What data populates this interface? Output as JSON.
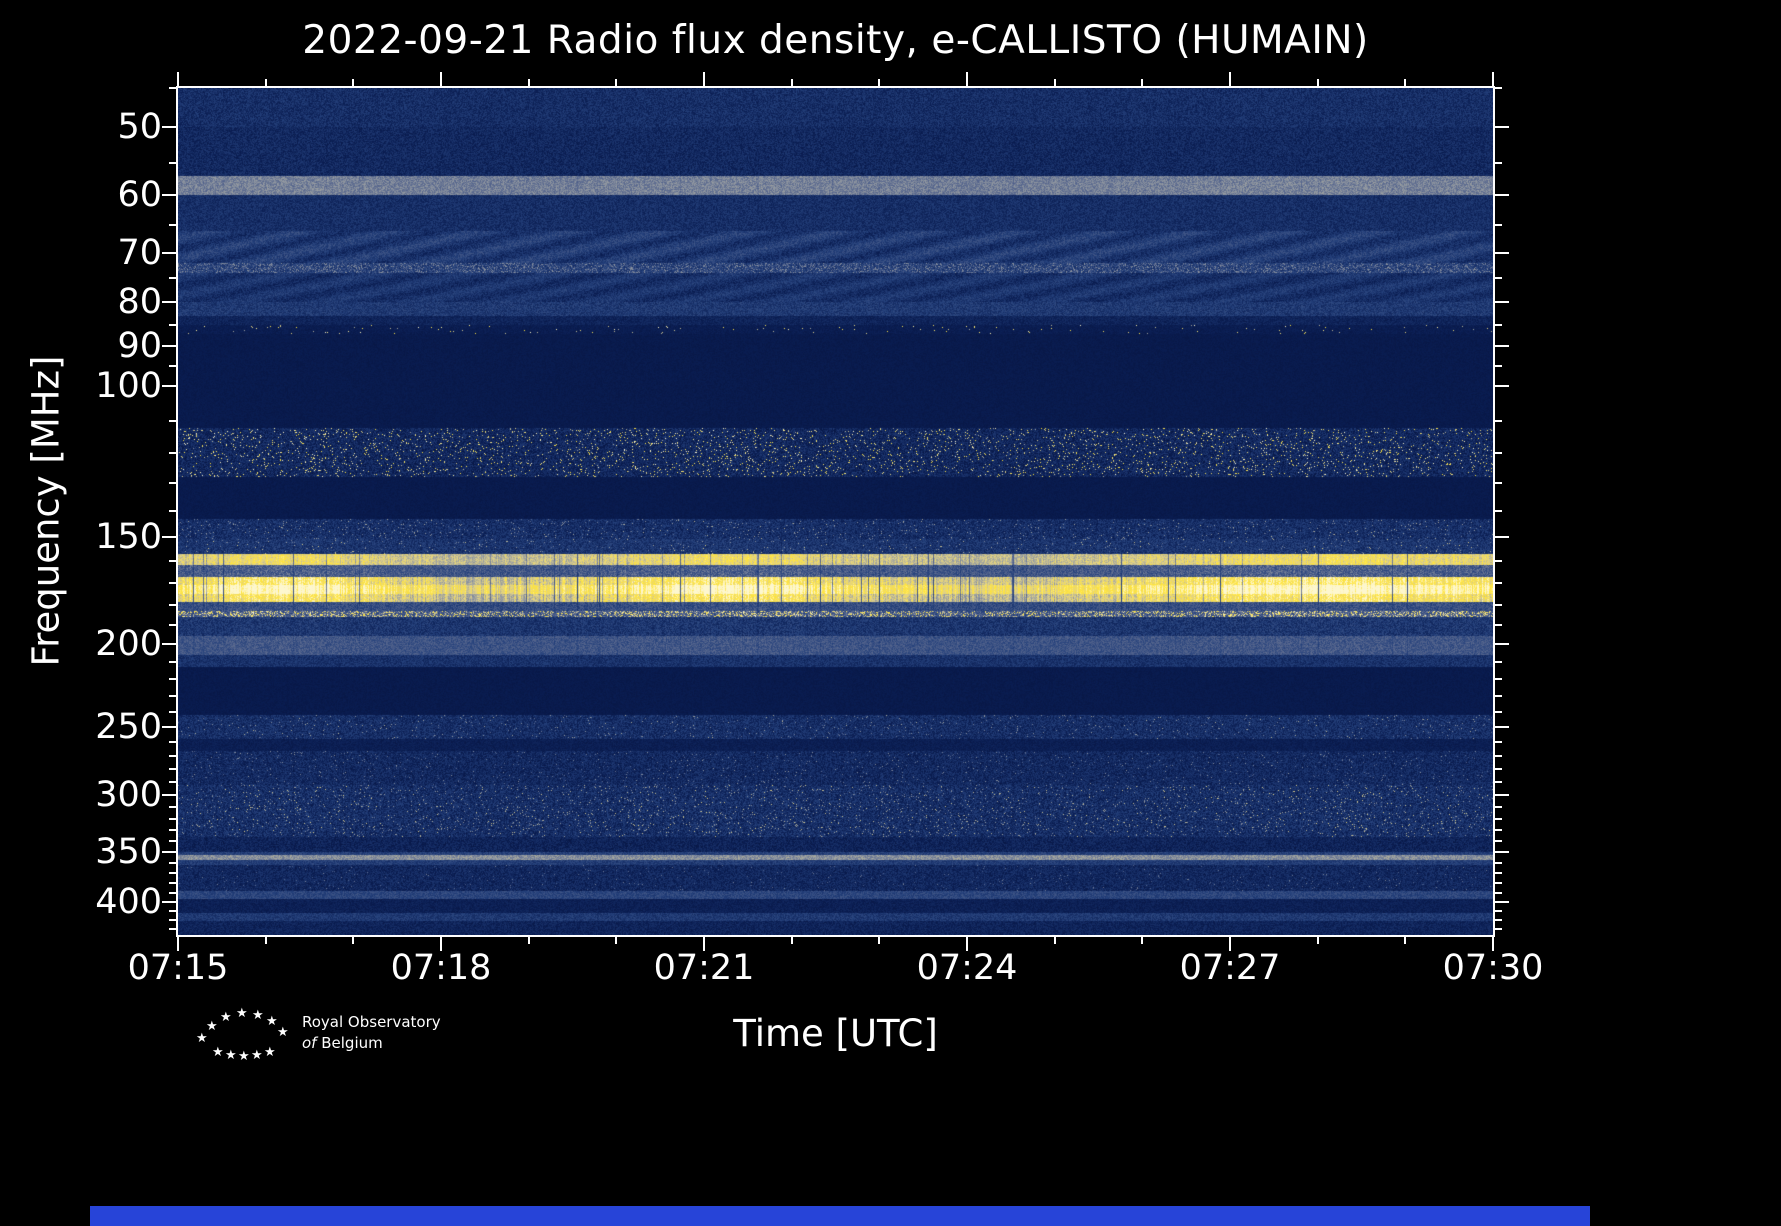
{
  "title": "2022-09-21 Radio flux density, e-CALLISTO (HUMAIN)",
  "xlabel": "Time [UTC]",
  "ylabel": "Frequency [MHz]",
  "logo": {
    "star_glyph": "★",
    "line1": "Royal Observatory",
    "line2_of": "of",
    "line2_rest": "Belgium"
  },
  "colors": {
    "background": "#000000",
    "axis": "#ffffff",
    "bottom_strip": "#2744d8"
  },
  "chart_data": {
    "type": "heatmap",
    "subtype": "radio-spectrogram",
    "title": "2022-09-21 Radio flux density, e-CALLISTO (HUMAIN)",
    "xlabel": "Time [UTC]",
    "ylabel": "Frequency [MHz]",
    "x_range_utc": [
      "07:15",
      "07:30"
    ],
    "duration_min": 15,
    "x_major_ticks": [
      {
        "minute": 0,
        "label": "07:15"
      },
      {
        "minute": 3,
        "label": "07:18"
      },
      {
        "minute": 6,
        "label": "07:21"
      },
      {
        "minute": 9,
        "label": "07:24"
      },
      {
        "minute": 12,
        "label": "07:27"
      },
      {
        "minute": 15,
        "label": "07:30"
      }
    ],
    "x_minor_tick_interval_min": 1,
    "y_scale": "log",
    "y_axis_inverted": true,
    "freq_range_mhz": [
      45,
      437
    ],
    "y_major_ticks": [
      50,
      60,
      70,
      80,
      90,
      100,
      150,
      200,
      250,
      300,
      350,
      400
    ],
    "y_minor_ticks": [
      45,
      55,
      65,
      75,
      85,
      95,
      110,
      120,
      130,
      140,
      160,
      170,
      180,
      190,
      210,
      220,
      230,
      240,
      260,
      270,
      280,
      290,
      310,
      320,
      330,
      340,
      360,
      370,
      380,
      390,
      410,
      420,
      430
    ],
    "colormap_stops": [
      [
        0.0,
        "#050f33"
      ],
      [
        0.1,
        "#0a1d52"
      ],
      [
        0.3,
        "#24407b"
      ],
      [
        0.5,
        "#55658d"
      ],
      [
        0.65,
        "#959ba2"
      ],
      [
        0.78,
        "#e2d388"
      ],
      [
        0.88,
        "#ffe438"
      ],
      [
        1.0,
        "#fdf7cf"
      ]
    ],
    "intensity_scale": "relative 0-1, rendered through colormap_stops",
    "bands": [
      {
        "f": [
          45,
          50
        ],
        "base": 0.2,
        "noise": 0.1,
        "tv": 0.15
      },
      {
        "f": [
          50,
          57
        ],
        "base": 0.17,
        "noise": 0.09,
        "tv": 0.15
      },
      {
        "f": [
          57,
          60
        ],
        "base": 0.58,
        "noise": 0.08,
        "tv": 0.1
      },
      {
        "f": [
          60,
          66
        ],
        "base": 0.2,
        "noise": 0.09
      },
      {
        "f": [
          66,
          72
        ],
        "base": 0.26,
        "noise": 0.1,
        "wave": 0.07
      },
      {
        "f": [
          72,
          74
        ],
        "base": 0.3,
        "noise": 0.12,
        "spk": [
          0.25,
          0.55
        ]
      },
      {
        "f": [
          74,
          80
        ],
        "base": 0.22,
        "noise": 0.09,
        "wave": 0.05
      },
      {
        "f": [
          80,
          83
        ],
        "base": 0.26,
        "noise": 0.1
      },
      {
        "f": [
          83,
          85
        ],
        "base": 0.14,
        "noise": 0.06
      },
      {
        "f": [
          85,
          87
        ],
        "base": 0.1,
        "noise": 0.03,
        "spk": [
          0.012,
          0.85
        ]
      },
      {
        "f": [
          87,
          112
        ],
        "base": 0.085,
        "noise": 0.02
      },
      {
        "f": [
          112,
          128
        ],
        "base": 0.16,
        "noise": 0.11,
        "spk": [
          0.05,
          0.88
        ],
        "tv": 0.2
      },
      {
        "f": [
          128,
          143
        ],
        "base": 0.085,
        "noise": 0.02
      },
      {
        "f": [
          143,
          151
        ],
        "base": 0.2,
        "noise": 0.11,
        "spk": [
          0.03,
          0.6
        ],
        "tv": 0.2
      },
      {
        "f": [
          151,
          157
        ],
        "base": 0.24,
        "noise": 0.11,
        "spk": [
          0.02,
          0.65
        ],
        "tv": 0.2
      },
      {
        "f": [
          157,
          162
        ],
        "base": 0.8,
        "noise": 0.07,
        "tv": 0.5
      },
      {
        "f": [
          162,
          167
        ],
        "base": 0.45,
        "noise": 0.13,
        "tv": 0.4
      },
      {
        "f": [
          167,
          171
        ],
        "base": 0.88,
        "noise": 0.08,
        "tv": 0.8
      },
      {
        "f": [
          171,
          175
        ],
        "base": 0.97,
        "noise": 0.05,
        "tv": 0.8
      },
      {
        "f": [
          175,
          179
        ],
        "base": 0.85,
        "noise": 0.08,
        "tv": 0.8
      },
      {
        "f": [
          179,
          183
        ],
        "base": 0.38,
        "noise": 0.12,
        "tv": 0.3
      },
      {
        "f": [
          183,
          186
        ],
        "base": 0.45,
        "noise": 0.15,
        "spk": [
          0.3,
          0.85
        ],
        "tv": 0.3
      },
      {
        "f": [
          186,
          196
        ],
        "base": 0.25,
        "noise": 0.11,
        "tv": 0.2
      },
      {
        "f": [
          196,
          206
        ],
        "base": 0.42,
        "noise": 0.1,
        "tv": 0.2
      },
      {
        "f": [
          206,
          213
        ],
        "base": 0.22,
        "noise": 0.09
      },
      {
        "f": [
          213,
          242
        ],
        "base": 0.085,
        "noise": 0.02
      },
      {
        "f": [
          242,
          258
        ],
        "base": 0.2,
        "noise": 0.11,
        "spk": [
          0.02,
          0.6
        ],
        "tv": 0.2
      },
      {
        "f": [
          258,
          267
        ],
        "base": 0.11,
        "noise": 0.04
      },
      {
        "f": [
          267,
          292
        ],
        "base": 0.17,
        "noise": 0.1,
        "spk": [
          0.02,
          0.55
        ],
        "tv": 0.2
      },
      {
        "f": [
          292,
          336
        ],
        "base": 0.2,
        "noise": 0.12,
        "spk": [
          0.04,
          0.66
        ],
        "tv": 0.2
      },
      {
        "f": [
          336,
          350
        ],
        "base": 0.14,
        "noise": 0.08
      },
      {
        "f": [
          350,
          353
        ],
        "base": 0.3,
        "noise": 0.09
      },
      {
        "f": [
          353,
          357
        ],
        "base": 0.62,
        "noise": 0.08
      },
      {
        "f": [
          357,
          362
        ],
        "base": 0.28,
        "noise": 0.09
      },
      {
        "f": [
          362,
          388
        ],
        "base": 0.16,
        "noise": 0.09,
        "spk": [
          0.012,
          0.5
        ]
      },
      {
        "f": [
          388,
          397
        ],
        "base": 0.33,
        "noise": 0.09
      },
      {
        "f": [
          397,
          412
        ],
        "base": 0.12,
        "noise": 0.05
      },
      {
        "f": [
          412,
          421
        ],
        "base": 0.26,
        "noise": 0.09
      },
      {
        "f": [
          421,
          437
        ],
        "base": 0.14,
        "noise": 0.07
      }
    ]
  }
}
